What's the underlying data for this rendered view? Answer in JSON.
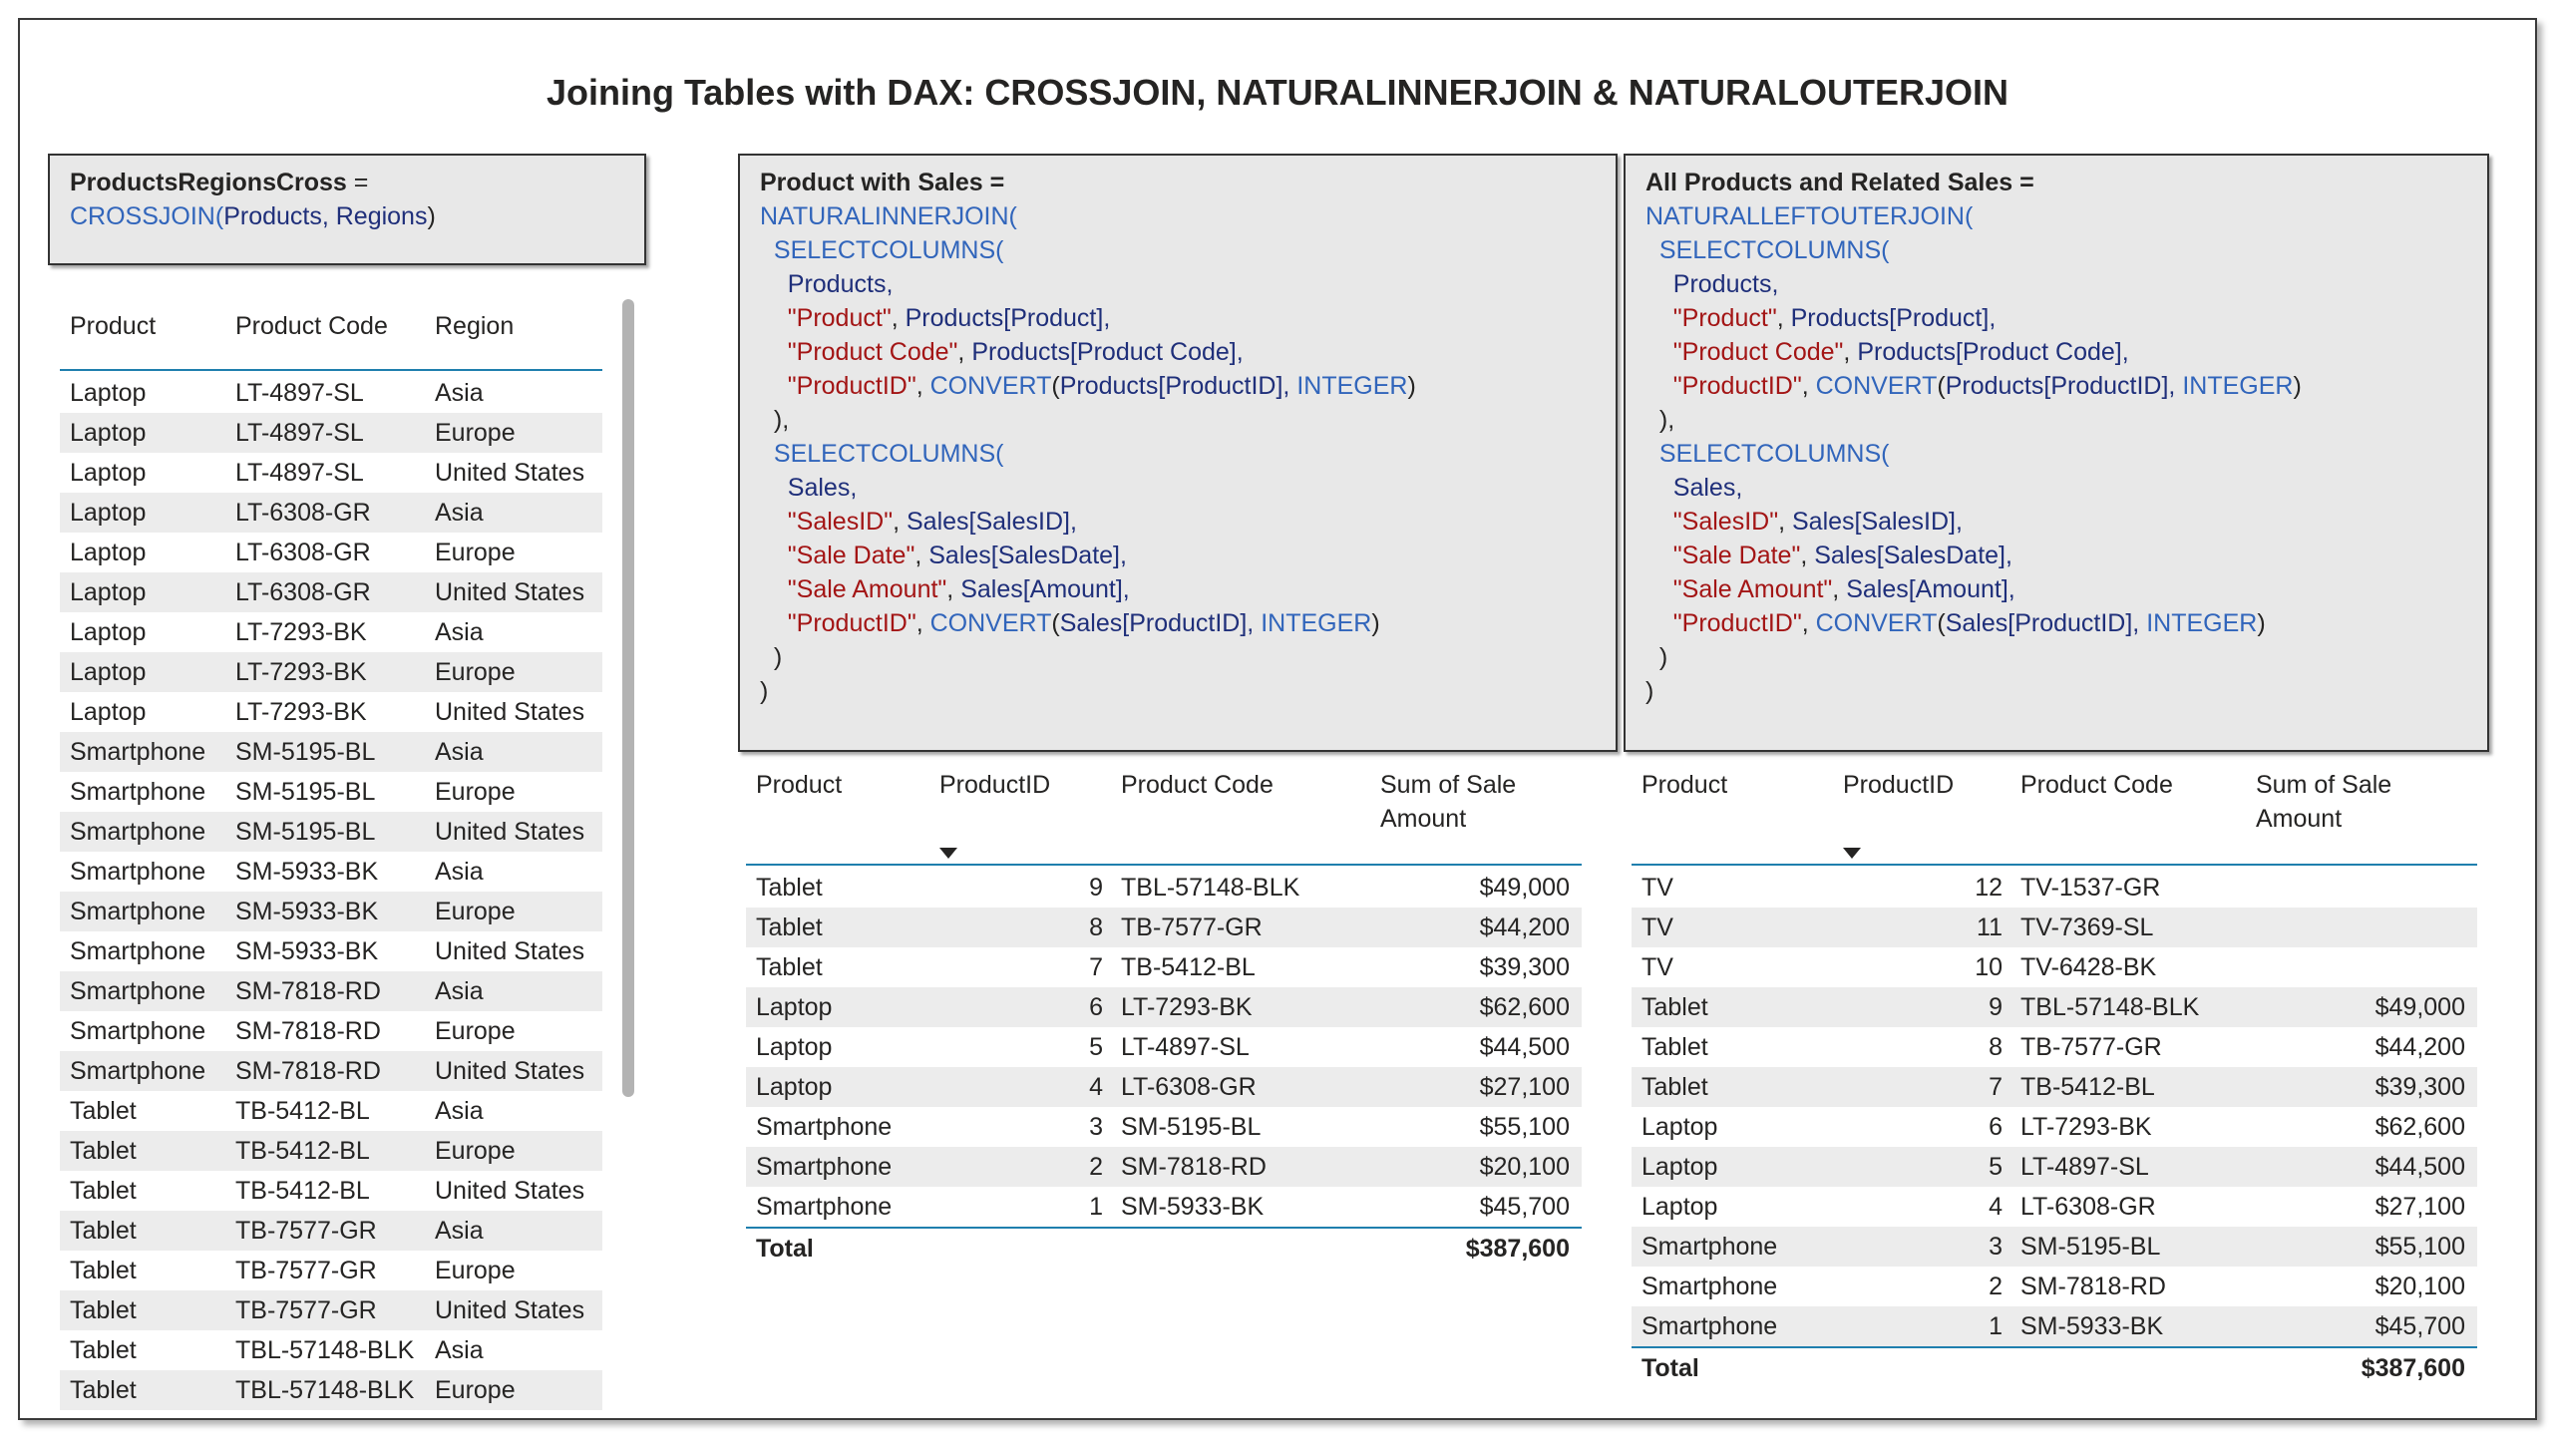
{
  "title": "Joining Tables with DAX: CROSSJOIN, NATURALINNERJOIN & NATURALOUTERJOIN",
  "code_cross": [
    [
      [
        "ProductsRegionsCross",
        "bold"
      ],
      [
        " =",
        "punc"
      ]
    ],
    [
      [
        "CROSSJOIN",
        "fn"
      ],
      [
        "(",
        "fn"
      ],
      [
        "Products, Regions",
        "ref"
      ],
      [
        ")",
        "punc"
      ]
    ]
  ],
  "code_inner": [
    [
      [
        "Product with Sales",
        "bold"
      ],
      [
        " =",
        "bold"
      ]
    ],
    [
      [
        "NATURALINNERJOIN(",
        "fn"
      ]
    ],
    [
      [
        "  SELECTCOLUMNS(",
        "fn"
      ]
    ],
    [
      [
        "    Products,",
        "ref"
      ]
    ],
    [
      [
        "    \"Product\"",
        "str"
      ],
      [
        ", ",
        "punc"
      ],
      [
        "Products[Product],",
        "ref"
      ]
    ],
    [
      [
        "    \"Product Code\"",
        "str"
      ],
      [
        ", ",
        "punc"
      ],
      [
        "Products[Product Code],",
        "ref"
      ]
    ],
    [
      [
        "    \"ProductID\"",
        "str"
      ],
      [
        ", ",
        "punc"
      ],
      [
        "CONVERT",
        "fn"
      ],
      [
        "(",
        "punc"
      ],
      [
        "Products[ProductID], ",
        "ref"
      ],
      [
        "INTEGER",
        "fn"
      ],
      [
        ")",
        "punc"
      ]
    ],
    [
      [
        "  ),",
        "punc"
      ]
    ],
    [
      [
        "  SELECTCOLUMNS(",
        "fn"
      ]
    ],
    [
      [
        "    Sales,",
        "ref"
      ]
    ],
    [
      [
        "    \"SalesID\"",
        "str"
      ],
      [
        ", ",
        "punc"
      ],
      [
        "Sales[SalesID],",
        "ref"
      ]
    ],
    [
      [
        "    \"Sale Date\"",
        "str"
      ],
      [
        ", ",
        "punc"
      ],
      [
        "Sales[SalesDate],",
        "ref"
      ]
    ],
    [
      [
        "    \"Sale Amount\"",
        "str"
      ],
      [
        ", ",
        "punc"
      ],
      [
        "Sales[Amount],",
        "ref"
      ]
    ],
    [
      [
        "    \"ProductID\"",
        "str"
      ],
      [
        ", ",
        "punc"
      ],
      [
        "CONVERT",
        "fn"
      ],
      [
        "(",
        "punc"
      ],
      [
        "Sales[ProductID], ",
        "ref"
      ],
      [
        "INTEGER",
        "fn"
      ],
      [
        ")",
        "punc"
      ]
    ],
    [
      [
        "  )",
        "punc"
      ]
    ],
    [
      [
        ")",
        "punc"
      ]
    ]
  ],
  "code_outer": [
    [
      [
        "All Products and Related Sales",
        "bold"
      ],
      [
        " =",
        "bold"
      ]
    ],
    [
      [
        "NATURALLEFTOUTERJOIN(",
        "fn"
      ]
    ],
    [
      [
        "  SELECTCOLUMNS(",
        "fn"
      ]
    ],
    [
      [
        "    Products,",
        "ref"
      ]
    ],
    [
      [
        "    \"Product\"",
        "str"
      ],
      [
        ", ",
        "punc"
      ],
      [
        "Products[Product],",
        "ref"
      ]
    ],
    [
      [
        "    \"Product Code\"",
        "str"
      ],
      [
        ", ",
        "punc"
      ],
      [
        "Products[Product Code],",
        "ref"
      ]
    ],
    [
      [
        "    \"ProductID\"",
        "str"
      ],
      [
        ", ",
        "punc"
      ],
      [
        "CONVERT",
        "fn"
      ],
      [
        "(",
        "punc"
      ],
      [
        "Products[ProductID], ",
        "ref"
      ],
      [
        "INTEGER",
        "fn"
      ],
      [
        ")",
        "punc"
      ]
    ],
    [
      [
        "  ),",
        "punc"
      ]
    ],
    [
      [
        "  SELECTCOLUMNS(",
        "fn"
      ]
    ],
    [
      [
        "    Sales,",
        "ref"
      ]
    ],
    [
      [
        "    \"SalesID\"",
        "str"
      ],
      [
        ", ",
        "punc"
      ],
      [
        "Sales[SalesID],",
        "ref"
      ]
    ],
    [
      [
        "    \"Sale Date\"",
        "str"
      ],
      [
        ", ",
        "punc"
      ],
      [
        "Sales[SalesDate],",
        "ref"
      ]
    ],
    [
      [
        "    \"Sale Amount\"",
        "str"
      ],
      [
        ", ",
        "punc"
      ],
      [
        "Sales[Amount],",
        "ref"
      ]
    ],
    [
      [
        "    \"ProductID\"",
        "str"
      ],
      [
        ", ",
        "punc"
      ],
      [
        "CONVERT",
        "fn"
      ],
      [
        "(",
        "punc"
      ],
      [
        "Sales[ProductID], ",
        "ref"
      ],
      [
        "INTEGER",
        "fn"
      ],
      [
        ")",
        "punc"
      ]
    ],
    [
      [
        "  )",
        "punc"
      ]
    ],
    [
      [
        ")",
        "punc"
      ]
    ]
  ],
  "cross_table": {
    "headers": [
      "Product",
      "Product Code",
      "Region"
    ],
    "rows": [
      [
        "Laptop",
        "LT-4897-SL",
        "Asia"
      ],
      [
        "Laptop",
        "LT-4897-SL",
        "Europe"
      ],
      [
        "Laptop",
        "LT-4897-SL",
        "United States"
      ],
      [
        "Laptop",
        "LT-6308-GR",
        "Asia"
      ],
      [
        "Laptop",
        "LT-6308-GR",
        "Europe"
      ],
      [
        "Laptop",
        "LT-6308-GR",
        "United States"
      ],
      [
        "Laptop",
        "LT-7293-BK",
        "Asia"
      ],
      [
        "Laptop",
        "LT-7293-BK",
        "Europe"
      ],
      [
        "Laptop",
        "LT-7293-BK",
        "United States"
      ],
      [
        "Smartphone",
        "SM-5195-BL",
        "Asia"
      ],
      [
        "Smartphone",
        "SM-5195-BL",
        "Europe"
      ],
      [
        "Smartphone",
        "SM-5195-BL",
        "United States"
      ],
      [
        "Smartphone",
        "SM-5933-BK",
        "Asia"
      ],
      [
        "Smartphone",
        "SM-5933-BK",
        "Europe"
      ],
      [
        "Smartphone",
        "SM-5933-BK",
        "United States"
      ],
      [
        "Smartphone",
        "SM-7818-RD",
        "Asia"
      ],
      [
        "Smartphone",
        "SM-7818-RD",
        "Europe"
      ],
      [
        "Smartphone",
        "SM-7818-RD",
        "United States"
      ],
      [
        "Tablet",
        "TB-5412-BL",
        "Asia"
      ],
      [
        "Tablet",
        "TB-5412-BL",
        "Europe"
      ],
      [
        "Tablet",
        "TB-5412-BL",
        "United States"
      ],
      [
        "Tablet",
        "TB-7577-GR",
        "Asia"
      ],
      [
        "Tablet",
        "TB-7577-GR",
        "Europe"
      ],
      [
        "Tablet",
        "TB-7577-GR",
        "United States"
      ],
      [
        "Tablet",
        "TBL-57148-BLK",
        "Asia"
      ],
      [
        "Tablet",
        "TBL-57148-BLK",
        "Europe"
      ]
    ]
  },
  "inner_table": {
    "headers": [
      "Product",
      "ProductID",
      "Product Code",
      "Sum of Sale",
      "Amount"
    ],
    "rows": [
      [
        "Tablet",
        "9",
        "TBL-57148-BLK",
        "$49,000"
      ],
      [
        "Tablet",
        "8",
        "TB-7577-GR",
        "$44,200"
      ],
      [
        "Tablet",
        "7",
        "TB-5412-BL",
        "$39,300"
      ],
      [
        "Laptop",
        "6",
        "LT-7293-BK",
        "$62,600"
      ],
      [
        "Laptop",
        "5",
        "LT-4897-SL",
        "$44,500"
      ],
      [
        "Laptop",
        "4",
        "LT-6308-GR",
        "$27,100"
      ],
      [
        "Smartphone",
        "3",
        "SM-5195-BL",
        "$55,100"
      ],
      [
        "Smartphone",
        "2",
        "SM-7818-RD",
        "$20,100"
      ],
      [
        "Smartphone",
        "1",
        "SM-5933-BK",
        "$45,700"
      ]
    ],
    "total_label": "Total",
    "total_value": "$387,600"
  },
  "outer_table": {
    "headers": [
      "Product",
      "ProductID",
      "Product Code",
      "Sum of Sale",
      "Amount"
    ],
    "rows": [
      [
        "TV",
        "12",
        "TV-1537-GR",
        ""
      ],
      [
        "TV",
        "11",
        "TV-7369-SL",
        ""
      ],
      [
        "TV",
        "10",
        "TV-6428-BK",
        ""
      ],
      [
        "Tablet",
        "9",
        "TBL-57148-BLK",
        "$49,000"
      ],
      [
        "Tablet",
        "8",
        "TB-7577-GR",
        "$44,200"
      ],
      [
        "Tablet",
        "7",
        "TB-5412-BL",
        "$39,300"
      ],
      [
        "Laptop",
        "6",
        "LT-7293-BK",
        "$62,600"
      ],
      [
        "Laptop",
        "5",
        "LT-4897-SL",
        "$44,500"
      ],
      [
        "Laptop",
        "4",
        "LT-6308-GR",
        "$27,100"
      ],
      [
        "Smartphone",
        "3",
        "SM-5195-BL",
        "$55,100"
      ],
      [
        "Smartphone",
        "2",
        "SM-7818-RD",
        "$20,100"
      ],
      [
        "Smartphone",
        "1",
        "SM-5933-BK",
        "$45,700"
      ]
    ],
    "total_label": "Total",
    "total_value": "$387,600"
  },
  "colors": {
    "accent_line": "#1f7fae",
    "dax_function": "#3165bb",
    "dax_string": "#a31515",
    "dax_reference": "#1f2f7a"
  }
}
